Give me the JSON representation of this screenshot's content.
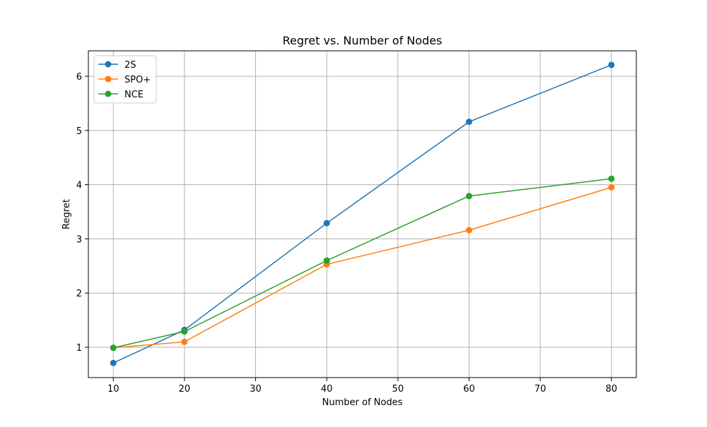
{
  "chart_data": {
    "type": "line",
    "title": "Regret vs. Number of Nodes",
    "xlabel": "Number of Nodes",
    "ylabel": "Regret",
    "x": [
      10,
      20,
      40,
      60,
      80
    ],
    "xlim": [
      6.5,
      83.5
    ],
    "ylim": [
      0.44,
      6.47
    ],
    "xticks": [
      "10",
      "20",
      "30",
      "40",
      "50",
      "60",
      "70",
      "80"
    ],
    "yticks": [
      "1",
      "2",
      "3",
      "4",
      "5",
      "6"
    ],
    "grid": true,
    "legend_position": "upper-left",
    "series": [
      {
        "name": "2S",
        "color": "#1f77b4",
        "values": [
          0.71,
          1.32,
          3.29,
          5.16,
          6.21
        ]
      },
      {
        "name": "SPO+",
        "color": "#ff7f0e",
        "values": [
          0.99,
          1.1,
          2.53,
          3.16,
          3.95
        ]
      },
      {
        "name": "NCE",
        "color": "#2ca02c",
        "values": [
          0.99,
          1.29,
          2.6,
          3.79,
          4.11
        ]
      }
    ]
  }
}
